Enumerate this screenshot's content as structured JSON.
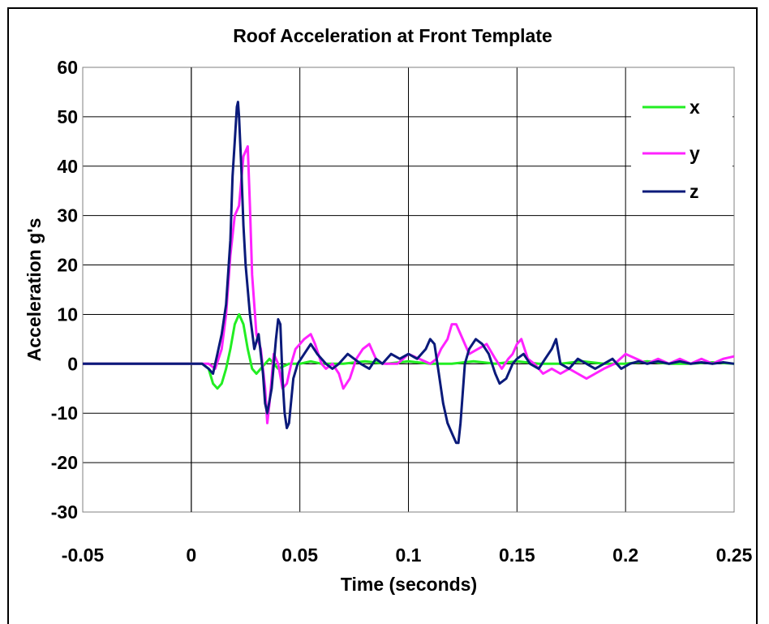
{
  "chart_data": {
    "type": "line",
    "title": "Roof Acceleration at Front Template",
    "xlabel": "Time (seconds)",
    "ylabel": "Acceleration g's",
    "xlim": [
      -0.05,
      0.25
    ],
    "ylim": [
      -30,
      60
    ],
    "xticks": [
      -0.05,
      0,
      0.05,
      0.1,
      0.15,
      0.2,
      0.25
    ],
    "xtick_labels": [
      "-0.05",
      "0",
      "0.05",
      "0.1",
      "0.15",
      "0.2",
      "0.25"
    ],
    "yticks": [
      -30,
      -20,
      -10,
      0,
      10,
      20,
      30,
      40,
      50,
      60
    ],
    "ytick_labels": [
      "-30",
      "-20",
      "-10",
      "0",
      "10",
      "20",
      "30",
      "40",
      "50",
      "60"
    ],
    "grid": true,
    "legend_position": "top-right",
    "series": [
      {
        "name": "x",
        "color": "#22ee22",
        "points": [
          [
            -0.05,
            0
          ],
          [
            0,
            0
          ],
          [
            0.005,
            0
          ],
          [
            0.008,
            -1
          ],
          [
            0.01,
            -4
          ],
          [
            0.012,
            -5
          ],
          [
            0.014,
            -4
          ],
          [
            0.016,
            -1
          ],
          [
            0.018,
            3
          ],
          [
            0.02,
            8
          ],
          [
            0.022,
            10
          ],
          [
            0.024,
            8
          ],
          [
            0.026,
            3
          ],
          [
            0.028,
            -1
          ],
          [
            0.03,
            -2
          ],
          [
            0.032,
            -1
          ],
          [
            0.034,
            0
          ],
          [
            0.036,
            1
          ],
          [
            0.038,
            0
          ],
          [
            0.04,
            -1
          ],
          [
            0.045,
            0
          ],
          [
            0.05,
            0
          ],
          [
            0.055,
            0.5
          ],
          [
            0.06,
            0
          ],
          [
            0.07,
            0
          ],
          [
            0.08,
            0.5
          ],
          [
            0.09,
            0
          ],
          [
            0.1,
            0.5
          ],
          [
            0.11,
            0
          ],
          [
            0.12,
            0
          ],
          [
            0.13,
            0.5
          ],
          [
            0.14,
            0
          ],
          [
            0.15,
            0.5
          ],
          [
            0.16,
            0
          ],
          [
            0.17,
            0
          ],
          [
            0.18,
            0.5
          ],
          [
            0.19,
            0
          ],
          [
            0.2,
            0
          ],
          [
            0.21,
            0.5
          ],
          [
            0.22,
            0
          ],
          [
            0.23,
            0
          ],
          [
            0.24,
            0.3
          ],
          [
            0.25,
            0
          ]
        ]
      },
      {
        "name": "y",
        "color": "#ff22ff",
        "points": [
          [
            -0.05,
            0
          ],
          [
            0,
            0
          ],
          [
            0.008,
            0
          ],
          [
            0.011,
            -1
          ],
          [
            0.014,
            3
          ],
          [
            0.016,
            10
          ],
          [
            0.018,
            22
          ],
          [
            0.02,
            30
          ],
          [
            0.022,
            32
          ],
          [
            0.024,
            42
          ],
          [
            0.026,
            44
          ],
          [
            0.027,
            32
          ],
          [
            0.028,
            18
          ],
          [
            0.03,
            6
          ],
          [
            0.032,
            3
          ],
          [
            0.034,
            -5
          ],
          [
            0.035,
            -12
          ],
          [
            0.036,
            -8
          ],
          [
            0.038,
            2
          ],
          [
            0.04,
            0
          ],
          [
            0.042,
            -5
          ],
          [
            0.044,
            -4
          ],
          [
            0.046,
            0
          ],
          [
            0.048,
            3
          ],
          [
            0.05,
            4
          ],
          [
            0.052,
            5
          ],
          [
            0.055,
            6
          ],
          [
            0.057,
            4
          ],
          [
            0.06,
            0
          ],
          [
            0.062,
            -1
          ],
          [
            0.065,
            0
          ],
          [
            0.068,
            -2
          ],
          [
            0.07,
            -5
          ],
          [
            0.073,
            -3
          ],
          [
            0.076,
            1
          ],
          [
            0.079,
            3
          ],
          [
            0.082,
            4
          ],
          [
            0.085,
            1
          ],
          [
            0.088,
            0
          ],
          [
            0.092,
            0
          ],
          [
            0.095,
            0
          ],
          [
            0.1,
            2
          ],
          [
            0.105,
            1
          ],
          [
            0.11,
            0
          ],
          [
            0.113,
            1
          ],
          [
            0.115,
            3
          ],
          [
            0.118,
            5
          ],
          [
            0.12,
            8
          ],
          [
            0.122,
            8
          ],
          [
            0.125,
            5
          ],
          [
            0.128,
            2
          ],
          [
            0.132,
            3
          ],
          [
            0.136,
            4
          ],
          [
            0.14,
            1
          ],
          [
            0.143,
            -1
          ],
          [
            0.146,
            1
          ],
          [
            0.148,
            2
          ],
          [
            0.15,
            4
          ],
          [
            0.152,
            5
          ],
          [
            0.155,
            1
          ],
          [
            0.158,
            0
          ],
          [
            0.162,
            -2
          ],
          [
            0.166,
            -1
          ],
          [
            0.17,
            -2
          ],
          [
            0.174,
            -1
          ],
          [
            0.178,
            -2
          ],
          [
            0.182,
            -3
          ],
          [
            0.186,
            -2
          ],
          [
            0.19,
            -1
          ],
          [
            0.195,
            0
          ],
          [
            0.2,
            2
          ],
          [
            0.205,
            1
          ],
          [
            0.21,
            0
          ],
          [
            0.215,
            1
          ],
          [
            0.22,
            0
          ],
          [
            0.225,
            1
          ],
          [
            0.23,
            0
          ],
          [
            0.235,
            1
          ],
          [
            0.24,
            0
          ],
          [
            0.245,
            1
          ],
          [
            0.25,
            1.5
          ]
        ]
      },
      {
        "name": "z",
        "color": "#0a1a7a",
        "points": [
          [
            -0.05,
            0
          ],
          [
            0,
            0
          ],
          [
            0.005,
            0
          ],
          [
            0.008,
            -1
          ],
          [
            0.01,
            -2
          ],
          [
            0.012,
            2
          ],
          [
            0.014,
            6
          ],
          [
            0.016,
            12
          ],
          [
            0.018,
            25
          ],
          [
            0.019,
            38
          ],
          [
            0.02,
            45
          ],
          [
            0.021,
            52
          ],
          [
            0.0215,
            53
          ],
          [
            0.022,
            50
          ],
          [
            0.023,
            40
          ],
          [
            0.024,
            28
          ],
          [
            0.025,
            20
          ],
          [
            0.027,
            10
          ],
          [
            0.029,
            3
          ],
          [
            0.031,
            6
          ],
          [
            0.033,
            -2
          ],
          [
            0.034,
            -8
          ],
          [
            0.035,
            -10
          ],
          [
            0.037,
            -5
          ],
          [
            0.039,
            5
          ],
          [
            0.04,
            9
          ],
          [
            0.041,
            8
          ],
          [
            0.042,
            -3
          ],
          [
            0.043,
            -10
          ],
          [
            0.044,
            -13
          ],
          [
            0.045,
            -12
          ],
          [
            0.047,
            -3
          ],
          [
            0.049,
            0
          ],
          [
            0.052,
            2
          ],
          [
            0.055,
            4
          ],
          [
            0.058,
            2
          ],
          [
            0.062,
            0
          ],
          [
            0.065,
            -1
          ],
          [
            0.068,
            0
          ],
          [
            0.072,
            2
          ],
          [
            0.075,
            1
          ],
          [
            0.078,
            0
          ],
          [
            0.082,
            -1
          ],
          [
            0.085,
            1
          ],
          [
            0.088,
            0
          ],
          [
            0.092,
            2
          ],
          [
            0.096,
            1
          ],
          [
            0.1,
            2
          ],
          [
            0.104,
            1
          ],
          [
            0.108,
            3
          ],
          [
            0.11,
            5
          ],
          [
            0.112,
            4
          ],
          [
            0.114,
            -2
          ],
          [
            0.116,
            -8
          ],
          [
            0.118,
            -12
          ],
          [
            0.12,
            -14
          ],
          [
            0.122,
            -16
          ],
          [
            0.123,
            -16
          ],
          [
            0.124,
            -12
          ],
          [
            0.126,
            0
          ],
          [
            0.128,
            3
          ],
          [
            0.131,
            5
          ],
          [
            0.134,
            4
          ],
          [
            0.137,
            2
          ],
          [
            0.14,
            -2
          ],
          [
            0.142,
            -4
          ],
          [
            0.145,
            -3
          ],
          [
            0.148,
            0
          ],
          [
            0.15,
            1
          ],
          [
            0.153,
            2
          ],
          [
            0.156,
            0
          ],
          [
            0.16,
            -1
          ],
          [
            0.163,
            1
          ],
          [
            0.166,
            3
          ],
          [
            0.168,
            5
          ],
          [
            0.17,
            0
          ],
          [
            0.174,
            -1
          ],
          [
            0.178,
            1
          ],
          [
            0.182,
            0
          ],
          [
            0.186,
            -1
          ],
          [
            0.19,
            0
          ],
          [
            0.194,
            1
          ],
          [
            0.198,
            -1
          ],
          [
            0.202,
            0
          ],
          [
            0.206,
            0.5
          ],
          [
            0.21,
            0
          ],
          [
            0.215,
            0.5
          ],
          [
            0.22,
            0
          ],
          [
            0.225,
            0.5
          ],
          [
            0.23,
            0
          ],
          [
            0.235,
            0.3
          ],
          [
            0.24,
            0
          ],
          [
            0.245,
            0.3
          ],
          [
            0.25,
            0
          ]
        ]
      }
    ]
  }
}
